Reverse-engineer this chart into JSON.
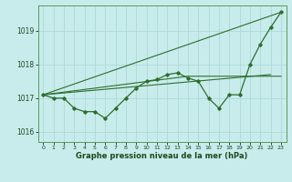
{
  "xlabel": "Graphe pression niveau de la mer (hPa)",
  "background_color": "#c8ecec",
  "grid_color": "#b0d8d8",
  "line_color": "#2d6e2d",
  "xlim": [
    -0.5,
    23.5
  ],
  "ylim": [
    1015.7,
    1019.75
  ],
  "yticks": [
    1016,
    1017,
    1018,
    1019
  ],
  "xticks": [
    0,
    1,
    2,
    3,
    4,
    5,
    6,
    7,
    8,
    9,
    10,
    11,
    12,
    13,
    14,
    15,
    16,
    17,
    18,
    19,
    20,
    21,
    22,
    23
  ],
  "line_main": [
    1017.1,
    1017.0,
    1017.0,
    1016.7,
    1016.6,
    1016.6,
    1016.4,
    1016.7,
    1017.0,
    1017.3,
    1017.5,
    1017.55,
    1017.7,
    1017.75,
    1017.6,
    1017.5,
    1017.0,
    1016.7,
    1017.1,
    1017.1,
    1018.0,
    1018.6,
    1019.1,
    1019.55
  ],
  "trend1_x": [
    0,
    23
  ],
  "trend1_y": [
    1017.1,
    1019.55
  ],
  "trend2_x": [
    0,
    22
  ],
  "trend2_y": [
    1017.1,
    1017.7
  ],
  "trend3_x": [
    0,
    14,
    23
  ],
  "trend3_y": [
    1017.1,
    1017.65,
    1017.65
  ],
  "trend4_x": [
    0,
    23
  ],
  "trend4_y": [
    1017.1,
    1017.7
  ]
}
